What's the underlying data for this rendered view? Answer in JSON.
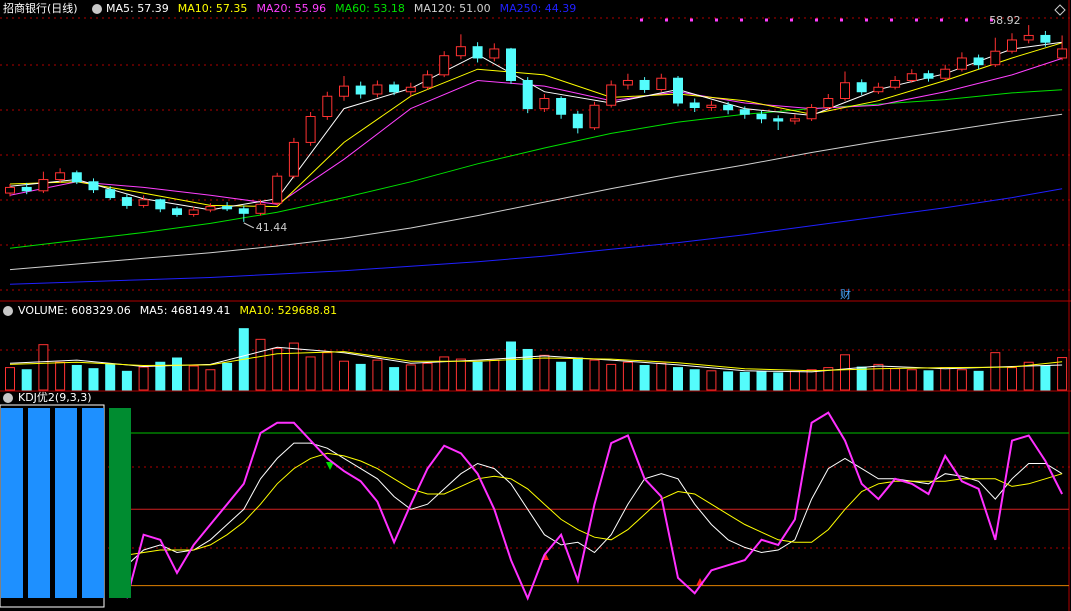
{
  "chart_data": [
    {
      "type": "candlestick",
      "title": "招商银行(日线)",
      "marker": "财",
      "ylim": [
        34.5,
        59.55
      ],
      "up_color": "#ff3232",
      "down_color": "#54fcfc",
      "candles": [
        [
          44.0,
          44.8,
          43.7,
          44.5
        ],
        [
          44.5,
          44.9,
          43.9,
          44.2
        ],
        [
          44.2,
          45.9,
          44.0,
          45.2
        ],
        [
          45.2,
          46.2,
          44.9,
          45.8
        ],
        [
          45.8,
          46.0,
          44.8,
          45.0
        ],
        [
          45.0,
          45.3,
          44.0,
          44.3
        ],
        [
          44.3,
          44.6,
          43.4,
          43.6
        ],
        [
          43.6,
          43.9,
          42.6,
          42.9
        ],
        [
          42.9,
          43.8,
          42.7,
          43.4
        ],
        [
          43.4,
          43.5,
          42.3,
          42.6
        ],
        [
          42.6,
          42.8,
          41.9,
          42.1
        ],
        [
          42.1,
          42.8,
          41.9,
          42.5
        ],
        [
          42.5,
          43.1,
          42.3,
          42.8
        ],
        [
          42.8,
          43.2,
          42.4,
          42.6
        ],
        [
          42.6,
          42.9,
          41.44,
          42.2
        ],
        [
          42.2,
          43.4,
          42.0,
          43.0
        ],
        [
          43.1,
          45.8,
          42.9,
          45.5
        ],
        [
          45.5,
          48.9,
          45.3,
          48.5
        ],
        [
          48.5,
          51.2,
          48.2,
          50.8
        ],
        [
          50.8,
          53.0,
          50.5,
          52.6
        ],
        [
          52.6,
          54.4,
          52.2,
          53.5
        ],
        [
          53.5,
          53.9,
          52.4,
          52.8
        ],
        [
          52.8,
          54.0,
          52.5,
          53.6
        ],
        [
          53.6,
          53.9,
          52.7,
          53.0
        ],
        [
          53.0,
          53.8,
          52.6,
          53.4
        ],
        [
          53.4,
          54.9,
          53.2,
          54.5
        ],
        [
          54.5,
          56.6,
          54.3,
          56.2
        ],
        [
          56.2,
          58.1,
          55.9,
          57.0
        ],
        [
          57.0,
          57.4,
          55.6,
          56.0
        ],
        [
          56.0,
          57.3,
          55.7,
          56.8
        ],
        [
          56.8,
          56.9,
          53.7,
          54.0
        ],
        [
          54.0,
          54.3,
          51.1,
          51.5
        ],
        [
          51.5,
          52.8,
          51.2,
          52.4
        ],
        [
          52.4,
          52.6,
          50.6,
          51.0
        ],
        [
          51.0,
          51.3,
          49.3,
          49.8
        ],
        [
          49.8,
          52.1,
          49.6,
          51.8
        ],
        [
          51.8,
          54.0,
          51.6,
          53.6
        ],
        [
          53.6,
          54.6,
          53.2,
          54.0
        ],
        [
          54.0,
          54.3,
          52.9,
          53.2
        ],
        [
          53.2,
          54.6,
          53.0,
          54.2
        ],
        [
          54.2,
          54.4,
          51.7,
          52.0
        ],
        [
          52.0,
          52.4,
          51.2,
          51.6
        ],
        [
          51.6,
          52.2,
          51.3,
          51.8
        ],
        [
          51.8,
          52.1,
          51.0,
          51.4
        ],
        [
          51.4,
          51.7,
          50.6,
          51.0
        ],
        [
          51.0,
          51.3,
          50.2,
          50.6
        ],
        [
          50.6,
          50.9,
          49.6,
          50.4
        ],
        [
          50.4,
          51.0,
          50.1,
          50.6
        ],
        [
          50.6,
          51.9,
          50.4,
          51.6
        ],
        [
          51.6,
          52.8,
          51.4,
          52.4
        ],
        [
          52.4,
          54.8,
          52.2,
          53.8
        ],
        [
          53.8,
          54.1,
          52.7,
          53.0
        ],
        [
          53.0,
          53.8,
          52.8,
          53.4
        ],
        [
          53.4,
          54.4,
          53.2,
          54.0
        ],
        [
          54.0,
          55.0,
          53.8,
          54.6
        ],
        [
          54.6,
          54.9,
          53.9,
          54.2
        ],
        [
          54.2,
          55.4,
          54.0,
          55.0
        ],
        [
          55.0,
          56.5,
          54.8,
          56.0
        ],
        [
          56.0,
          56.3,
          55.0,
          55.4
        ],
        [
          55.4,
          57.8,
          55.2,
          56.6
        ],
        [
          56.6,
          58.2,
          56.4,
          57.6
        ],
        [
          57.6,
          58.92,
          57.3,
          58.0
        ],
        [
          58.0,
          58.4,
          57.0,
          57.4
        ],
        [
          56.0,
          58.0,
          55.8,
          56.8
        ]
      ],
      "ma_index": [
        0,
        4,
        8,
        12,
        16,
        20,
        24,
        28,
        32,
        36,
        40,
        44,
        48,
        52,
        56,
        60,
        63
      ],
      "series": [
        {
          "name": "MA5: 57.39",
          "color": "#ffffff",
          "values": [
            44.6,
            45.2,
            43.5,
            42.5,
            43.5,
            51.5,
            53.3,
            56.3,
            53.0,
            52.0,
            53.2,
            51.5,
            50.9,
            53.2,
            54.6,
            56.8,
            57.39
          ]
        },
        {
          "name": "MA10: 57.35",
          "color": "#ffff00",
          "values": [
            44.8,
            45.0,
            44.0,
            42.9,
            42.8,
            48.5,
            52.6,
            55.0,
            54.5,
            52.5,
            52.8,
            52.2,
            51.0,
            52.2,
            54.0,
            56.0,
            57.35
          ]
        },
        {
          "name": "MA20: 55.96",
          "color": "#ff40ff",
          "values": [
            43.8,
            45.0,
            44.5,
            43.8,
            43.0,
            47.0,
            51.5,
            54.0,
            53.5,
            52.2,
            53.0,
            52.0,
            51.5,
            51.8,
            53.0,
            54.5,
            55.96
          ]
        },
        {
          "name": "MA60: 53.18",
          "color": "#00e000",
          "values": [
            39.1,
            39.8,
            40.5,
            41.3,
            42.3,
            43.6,
            45.0,
            46.6,
            48.0,
            49.3,
            50.3,
            51.0,
            51.5,
            51.9,
            52.3,
            52.9,
            53.18
          ]
        },
        {
          "name": "MA120: 51.00",
          "color": "#d0d0d0",
          "values": [
            37.2,
            37.7,
            38.2,
            38.7,
            39.3,
            40.0,
            40.9,
            42.0,
            43.2,
            44.4,
            45.5,
            46.5,
            47.6,
            48.6,
            49.5,
            50.4,
            51.0
          ]
        },
        {
          "name": "MA250: 44.39",
          "color": "#2020ff",
          "values": [
            35.9,
            36.1,
            36.3,
            36.5,
            36.8,
            37.1,
            37.5,
            37.9,
            38.4,
            39.0,
            39.6,
            40.3,
            41.1,
            41.9,
            42.7,
            43.6,
            44.39
          ]
        }
      ]
    },
    {
      "type": "bar",
      "title": "VOLUME: 608329.06",
      "ylim": [
        0,
        1350000
      ],
      "values": [
        420000,
        380000,
        850000,
        520000,
        460000,
        400000,
        480000,
        350000,
        430000,
        520000,
        600000,
        450000,
        380000,
        500000,
        1150000,
        950000,
        780000,
        880000,
        620000,
        700000,
        540000,
        480000,
        560000,
        420000,
        470000,
        500000,
        620000,
        580000,
        520000,
        560000,
        900000,
        760000,
        650000,
        520000,
        600000,
        560000,
        480000,
        520000,
        460000,
        500000,
        420000,
        380000,
        360000,
        340000,
        330000,
        340000,
        320000,
        350000,
        380000,
        420000,
        660000,
        430000,
        480000,
        400000,
        380000,
        360000,
        420000,
        380000,
        350000,
        700000,
        420000,
        520000,
        450000,
        608329.06
      ],
      "ma_index": [
        0,
        4,
        8,
        12,
        16,
        20,
        24,
        28,
        32,
        36,
        40,
        44,
        48,
        52,
        56,
        60,
        63
      ],
      "series": [
        {
          "name": "MA5: 468149.41",
          "color": "#ffffff",
          "values": [
            500000,
            560000,
            440000,
            480000,
            800000,
            700000,
            500000,
            560000,
            640000,
            560000,
            470000,
            360000,
            340000,
            450000,
            400000,
            440000,
            468149.41
          ]
        },
        {
          "name": "MA10: 529688.81",
          "color": "#ffff00",
          "values": [
            480000,
            520000,
            460000,
            470000,
            680000,
            720000,
            540000,
            540000,
            600000,
            580000,
            510000,
            400000,
            360000,
            400000,
            420000,
            430000,
            529688.81
          ]
        }
      ]
    },
    {
      "type": "line",
      "title": "KDJ优2(9,3,3)",
      "ylim": [
        10,
        91
      ],
      "levels": [
        80,
        50,
        20
      ],
      "level_colors": [
        "#00c000",
        "#d02020",
        "#e08000"
      ],
      "series": [
        {
          "color": "#ffffff",
          "values": [
            null,
            null,
            null,
            null,
            null,
            null,
            null,
            28,
            34,
            36,
            33,
            34,
            38,
            44,
            50,
            62,
            70,
            76,
            76,
            74,
            70,
            66,
            62,
            55,
            50,
            52,
            58,
            64,
            68,
            66,
            60,
            50,
            40,
            36,
            37,
            33,
            40,
            52,
            62,
            64,
            62,
            52,
            44,
            38,
            35,
            33,
            34,
            38,
            54,
            66,
            70,
            66,
            62,
            62,
            61,
            60,
            64,
            63,
            61,
            54,
            62,
            68,
            68,
            64
          ]
        },
        {
          "color": "#ffff00",
          "values": [
            null,
            null,
            null,
            null,
            null,
            null,
            null,
            32,
            33,
            34,
            34,
            34,
            36,
            40,
            45,
            52,
            60,
            66,
            70,
            72,
            71,
            69,
            66,
            62,
            58,
            56,
            56,
            59,
            62,
            63,
            62,
            58,
            52,
            46,
            42,
            39,
            38,
            42,
            48,
            54,
            57,
            56,
            52,
            48,
            44,
            41,
            38,
            37,
            37,
            42,
            50,
            57,
            60,
            61,
            61,
            61,
            61,
            62,
            62,
            62,
            59,
            60,
            62,
            64
          ]
        },
        {
          "color": "#ff30ff",
          "values": [
            null,
            null,
            null,
            null,
            null,
            null,
            null,
            15,
            40,
            38,
            25,
            36,
            44,
            52,
            60,
            80,
            84,
            84,
            77,
            70,
            65,
            61,
            53,
            37,
            52,
            66,
            75,
            72,
            64,
            50,
            30,
            15,
            32,
            40,
            22,
            52,
            76,
            79,
            62,
            55,
            23,
            17,
            26,
            28,
            30,
            38,
            36,
            46,
            84,
            88,
            77,
            60,
            54,
            62,
            60,
            56,
            71,
            61,
            58,
            38,
            77,
            79,
            69,
            56
          ]
        }
      ]
    }
  ]
}
